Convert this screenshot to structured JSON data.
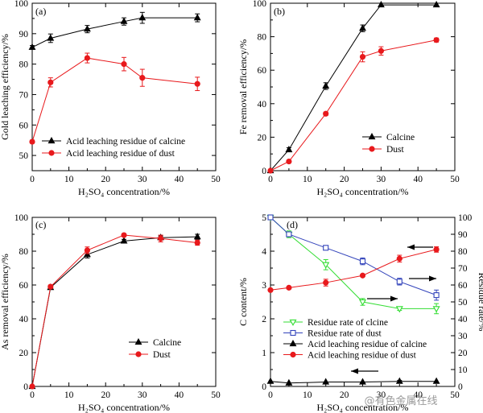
{
  "colors": {
    "black": "#000000",
    "red": "#e8191c",
    "green": "#33dd33",
    "blue": "#3344bb"
  },
  "watermark": "@有色金属在线",
  "chart_data": [
    {
      "type": "line",
      "panel": "(a)",
      "xlabel": "H₂SO₄ concentration/%",
      "ylabel": "Gold leaching efficiency/%",
      "xlim": [
        0,
        50
      ],
      "ylim": [
        45,
        100
      ],
      "xticks": [
        0,
        10,
        20,
        30,
        40,
        50
      ],
      "yticks": [
        50,
        60,
        70,
        80,
        90,
        100
      ],
      "legend_position": "bottom-left",
      "series": [
        {
          "name": "Acid leaching residue of calcine",
          "marker": "triangle",
          "color": "#000000",
          "x": [
            0,
            5,
            15,
            25,
            30,
            45
          ],
          "y": [
            85.5,
            88.5,
            91.5,
            94,
            95.2,
            95.2
          ],
          "err": [
            0.6,
            1.4,
            1.2,
            1.2,
            1.8,
            1.3
          ]
        },
        {
          "name": "Acid leaching residue of dust",
          "marker": "circle",
          "color": "#e8191c",
          "x": [
            0,
            5,
            15,
            25,
            30,
            45
          ],
          "y": [
            54.5,
            74,
            82,
            80,
            75.5,
            73.5
          ],
          "err": [
            0.5,
            1.5,
            1.6,
            2.2,
            2.8,
            2.2
          ]
        }
      ]
    },
    {
      "type": "line",
      "panel": "(b)",
      "xlabel": "H₂SO₄ concentration/%",
      "ylabel": "Fe removal efficiency/%",
      "xlim": [
        0,
        50
      ],
      "ylim": [
        0,
        100
      ],
      "xticks": [
        0,
        10,
        20,
        30,
        40,
        50
      ],
      "yticks": [
        0,
        20,
        40,
        60,
        80,
        100
      ],
      "legend_position": "bottom-right",
      "series": [
        {
          "name": "Calcine",
          "marker": "triangle",
          "color": "#000000",
          "x": [
            0,
            5,
            15,
            25,
            30,
            45
          ],
          "y": [
            0,
            12.5,
            50.5,
            85,
            99,
            99
          ],
          "err": [
            0,
            1.2,
            2.0,
            2.0,
            1.0,
            1.0
          ]
        },
        {
          "name": "Dust",
          "marker": "circle",
          "color": "#e8191c",
          "x": [
            0,
            5,
            15,
            25,
            30,
            45
          ],
          "y": [
            0,
            5.5,
            34,
            68,
            71.5,
            78
          ],
          "err": [
            0,
            0.6,
            1.0,
            3.0,
            2.5,
            1.2
          ]
        }
      ]
    },
    {
      "type": "line",
      "panel": "(c)",
      "xlabel": "H₂SO₄ concentration/%",
      "ylabel": "As removal efficiency/%",
      "xlim": [
        0,
        50
      ],
      "ylim": [
        0,
        100
      ],
      "xticks": [
        0,
        10,
        20,
        30,
        40,
        50
      ],
      "yticks": [
        0,
        20,
        40,
        60,
        80,
        100
      ],
      "legend_position": "bottom-right",
      "series": [
        {
          "name": "Calcine",
          "marker": "triangle",
          "color": "#000000",
          "x": [
            0,
            5,
            15,
            25,
            35,
            45
          ],
          "y": [
            0,
            58.5,
            78,
            86,
            88,
            88.5
          ],
          "err": [
            0,
            1.0,
            2.0,
            1.0,
            1.0,
            1.5
          ]
        },
        {
          "name": "Dust",
          "marker": "circle",
          "color": "#e8191c",
          "x": [
            0,
            5,
            15,
            25,
            35,
            45
          ],
          "y": [
            0,
            59,
            80.5,
            89.5,
            87.5,
            85
          ],
          "err": [
            0,
            1.0,
            2.0,
            0.8,
            2.0,
            1.5
          ]
        }
      ]
    },
    {
      "type": "line",
      "panel": "(d)",
      "xlabel": "H₂SO₄ concentration/%",
      "ylabel": "C content/%",
      "y2label": "Residue rate/%",
      "xlim": [
        0,
        50
      ],
      "ylim": [
        0,
        5
      ],
      "y2lim": [
        0,
        100
      ],
      "xticks": [
        0,
        10,
        20,
        30,
        40,
        50
      ],
      "yticks": [
        0,
        1,
        2,
        3,
        4,
        5
      ],
      "y2ticks": [
        0,
        10,
        20,
        30,
        40,
        50,
        60,
        70,
        80,
        90,
        100
      ],
      "legend_position": "bottom-center",
      "series": [
        {
          "name": "Residue rate of clcine",
          "marker": "open-triangle-down",
          "color": "#33dd33",
          "axis": "right",
          "x": [
            0,
            5,
            15,
            25,
            35,
            45
          ],
          "y": [
            100,
            90,
            72,
            50,
            46,
            46
          ],
          "err": [
            0,
            2,
            3,
            2,
            1,
            3
          ]
        },
        {
          "name": "Residue rate of dust",
          "marker": "open-square",
          "color": "#3344bb",
          "axis": "right",
          "x": [
            0,
            5,
            15,
            25,
            35,
            45
          ],
          "y": [
            100,
            90,
            82,
            74,
            62,
            54
          ],
          "err": [
            0,
            1,
            1,
            2,
            2,
            3
          ]
        },
        {
          "name": "Acid leaching residue of calcine",
          "marker": "triangle",
          "color": "#000000",
          "axis": "left",
          "x": [
            0,
            5,
            15,
            25,
            35,
            45
          ],
          "y": [
            0.15,
            0.1,
            0.13,
            0.13,
            0.15,
            0.15
          ],
          "err": [
            0,
            0,
            0,
            0,
            0.03,
            0
          ]
        },
        {
          "name": "Acid leaching residue of dust",
          "marker": "circle",
          "color": "#e8191c",
          "axis": "left",
          "x": [
            0,
            5,
            15,
            25,
            35,
            45
          ],
          "y": [
            2.85,
            2.92,
            3.07,
            3.28,
            3.78,
            4.05
          ],
          "err": [
            0,
            0.03,
            0.1,
            0.03,
            0.1,
            0.08
          ]
        }
      ]
    }
  ]
}
